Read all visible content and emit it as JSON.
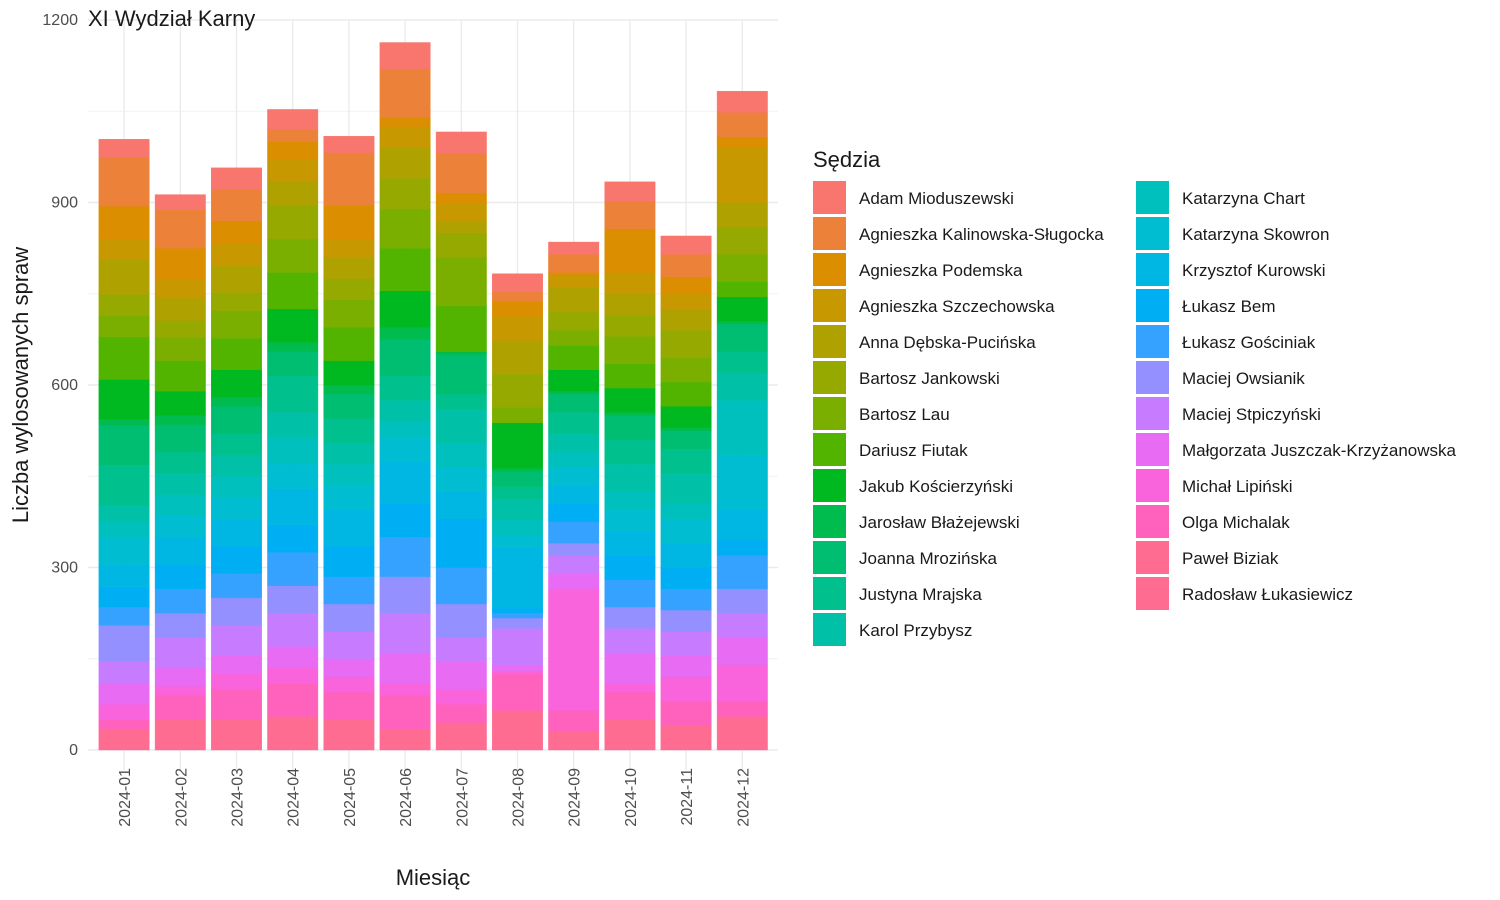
{
  "chart_data": {
    "type": "bar",
    "stacked": true,
    "title": "XI Wydział Karny",
    "xlabel": "Miesiąc",
    "ylabel": "Liczba wylosowanych spraw",
    "ylim": [
      0,
      1200
    ],
    "yticks": [
      0,
      300,
      600,
      900,
      1200
    ],
    "grid": true,
    "legend": {
      "title": "Sędzia",
      "position": "right",
      "columns": 2
    },
    "categories": [
      "2024-01",
      "2024-02",
      "2024-03",
      "2024-04",
      "2024-05",
      "2024-06",
      "2024-07",
      "2024-08",
      "2024-09",
      "2024-10",
      "2024-11",
      "2024-12"
    ],
    "series": [
      {
        "name": "Adam Mioduszewski",
        "color": "#F8766D",
        "values": [
          30,
          25,
          35,
          33,
          27,
          43,
          35,
          30,
          20,
          32,
          30,
          35
        ]
      },
      {
        "name": "Agnieszka Kalinowska-Sługocka",
        "color": "#EC8239",
        "values": [
          80,
          63,
          52,
          20,
          87,
          80,
          65,
          15,
          30,
          45,
          37,
          40
        ]
      },
      {
        "name": "Agnieszka Podemska",
        "color": "#DB8E00",
        "values": [
          55,
          52,
          38,
          30,
          55,
          15,
          18,
          25,
          5,
          72,
          28,
          18
        ]
      },
      {
        "name": "Agnieszka Szczechowska",
        "color": "#C79800",
        "values": [
          32,
          30,
          35,
          35,
          30,
          35,
          28,
          40,
          20,
          35,
          25,
          90
        ]
      },
      {
        "name": "Anna Dębska-Pucińska",
        "color": "#AFA100",
        "values": [
          58,
          37,
          45,
          40,
          35,
          50,
          20,
          55,
          40,
          35,
          35,
          40
        ]
      },
      {
        "name": "Bartosz Jankowski",
        "color": "#96A900",
        "values": [
          35,
          28,
          30,
          55,
          35,
          50,
          40,
          55,
          30,
          35,
          45,
          45
        ]
      },
      {
        "name": "Bartosz Lau",
        "color": "#7AAF00",
        "values": [
          35,
          38,
          45,
          55,
          45,
          65,
          80,
          25,
          25,
          45,
          40,
          45
        ]
      },
      {
        "name": "Dariusz Fiutak",
        "color": "#53B400",
        "values": [
          70,
          50,
          52,
          60,
          55,
          70,
          75,
          0,
          40,
          40,
          40,
          25
        ]
      },
      {
        "name": "Jakub Kościerzyński",
        "color": "#00B81F",
        "values": [
          65,
          40,
          45,
          55,
          40,
          60,
          0,
          75,
          35,
          40,
          35,
          40
        ]
      },
      {
        "name": "Jarosław Błażejewski",
        "color": "#00BB4E",
        "values": [
          10,
          15,
          15,
          15,
          15,
          20,
          5,
          5,
          5,
          5,
          5,
          5
        ]
      },
      {
        "name": "Joanna Mrozińska",
        "color": "#00BE71",
        "values": [
          65,
          45,
          45,
          40,
          40,
          60,
          65,
          25,
          30,
          40,
          30,
          45
        ]
      },
      {
        "name": "Justyna Mrajska",
        "color": "#00C08E",
        "values": [
          67,
          35,
          35,
          60,
          40,
          40,
          25,
          20,
          35,
          40,
          40,
          35
        ]
      },
      {
        "name": "Karol Przybysz",
        "color": "#00C1A7",
        "values": [
          27,
          35,
          35,
          40,
          35,
          35,
          55,
          35,
          30,
          45,
          50,
          45
        ]
      },
      {
        "name": "Katarzyna Chart",
        "color": "#00C0BE",
        "values": [
          25,
          35,
          35,
          45,
          35,
          25,
          40,
          25,
          25,
          30,
          25,
          90
        ]
      },
      {
        "name": "Katarzyna Skowron",
        "color": "#00BDD2",
        "values": [
          45,
          35,
          35,
          40,
          40,
          40,
          40,
          20,
          30,
          35,
          40,
          90
        ]
      },
      {
        "name": "Krzysztof Kurowski",
        "color": "#00B7E4",
        "values": [
          37,
          45,
          45,
          60,
          60,
          70,
          45,
          100,
          30,
          40,
          40,
          50
        ]
      },
      {
        "name": "Łukasz Bem",
        "color": "#00AFF3",
        "values": [
          33,
          40,
          45,
          45,
          50,
          55,
          80,
          8,
          30,
          40,
          35,
          25
        ]
      },
      {
        "name": "Łukasz Gościniak",
        "color": "#35A2FF",
        "values": [
          30,
          40,
          40,
          55,
          45,
          65,
          60,
          8,
          35,
          45,
          35,
          55
        ]
      },
      {
        "name": "Maciej Owsianik",
        "color": "#9590FF",
        "values": [
          60,
          40,
          45,
          45,
          45,
          60,
          55,
          17,
          20,
          35,
          35,
          40
        ]
      },
      {
        "name": "Maciej Stpiczyński",
        "color": "#C77CFF",
        "values": [
          35,
          50,
          50,
          55,
          45,
          65,
          40,
          60,
          30,
          40,
          40,
          40
        ]
      },
      {
        "name": "Małgorzata Juszczak-Krzyżanowska",
        "color": "#E76BF3",
        "values": [
          35,
          30,
          30,
          35,
          30,
          50,
          45,
          10,
          25,
          50,
          35,
          45
        ]
      },
      {
        "name": "Michał Lipiński",
        "color": "#F963DB",
        "values": [
          25,
          15,
          25,
          25,
          25,
          20,
          25,
          5,
          200,
          15,
          40,
          60
        ]
      },
      {
        "name": "Olga Michalak",
        "color": "#FF62BC",
        "values": [
          15,
          40,
          50,
          55,
          45,
          55,
          30,
          60,
          35,
          45,
          40,
          25
        ]
      },
      {
        "name": "Paweł Biziak",
        "color": "#FF6C91",
        "values": [
          30,
          45,
          45,
          50,
          45,
          30,
          40,
          40,
          25,
          45,
          35,
          50
        ]
      },
      {
        "name": "Radosław Łukasiewicz",
        "color": "#FF6C91",
        "values": [
          5,
          5,
          5,
          5,
          5,
          5,
          5,
          25,
          5,
          5,
          5,
          5
        ]
      }
    ]
  }
}
